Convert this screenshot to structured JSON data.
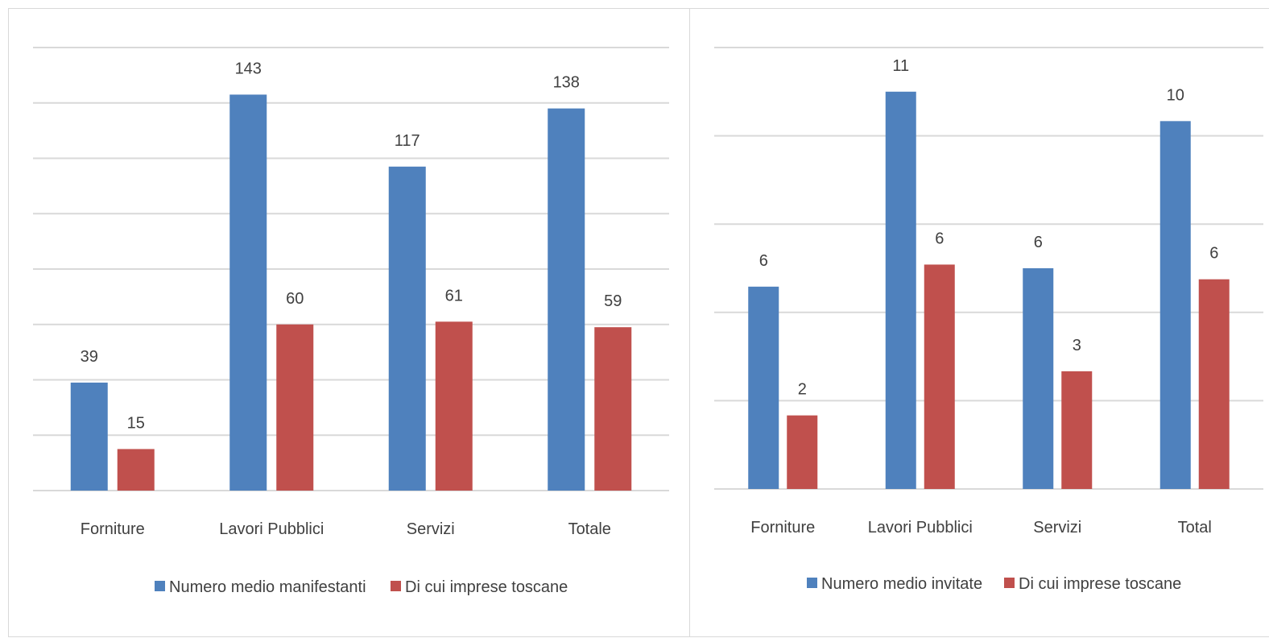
{
  "chart_data": [
    {
      "type": "bar",
      "categories": [
        "Forniture",
        "Lavori Pubblici",
        "Servizi",
        "Totale"
      ],
      "series": [
        {
          "name": "Numero medio manifestanti",
          "color": "#4f81bd",
          "values": [
            39,
            143,
            117,
            138
          ],
          "labels": [
            "39",
            "143",
            "117",
            "138"
          ]
        },
        {
          "name": "Di cui imprese toscane",
          "color": "#c0504d",
          "values": [
            15,
            60,
            61,
            59
          ],
          "labels": [
            "15",
            "60",
            "61",
            "59"
          ]
        }
      ],
      "ylim": [
        0,
        160
      ],
      "grid": true,
      "legend": "bottom"
    },
    {
      "type": "bar",
      "categories": [
        "Forniture",
        "Lavori Pubblici",
        "Servizi",
        "Total"
      ],
      "series": [
        {
          "name": "Numero medio invitate",
          "color": "#4f81bd",
          "values": [
            5.5,
            10.8,
            6.0,
            10.0
          ],
          "labels": [
            "6",
            "11",
            "6",
            "10"
          ]
        },
        {
          "name": "Di cui imprese toscane",
          "color": "#c0504d",
          "values": [
            2.0,
            6.1,
            3.2,
            5.7
          ],
          "labels": [
            "2",
            "6",
            "3",
            "6"
          ]
        }
      ],
      "ylim": [
        0,
        12
      ],
      "grid": true,
      "legend": "bottom"
    }
  ]
}
